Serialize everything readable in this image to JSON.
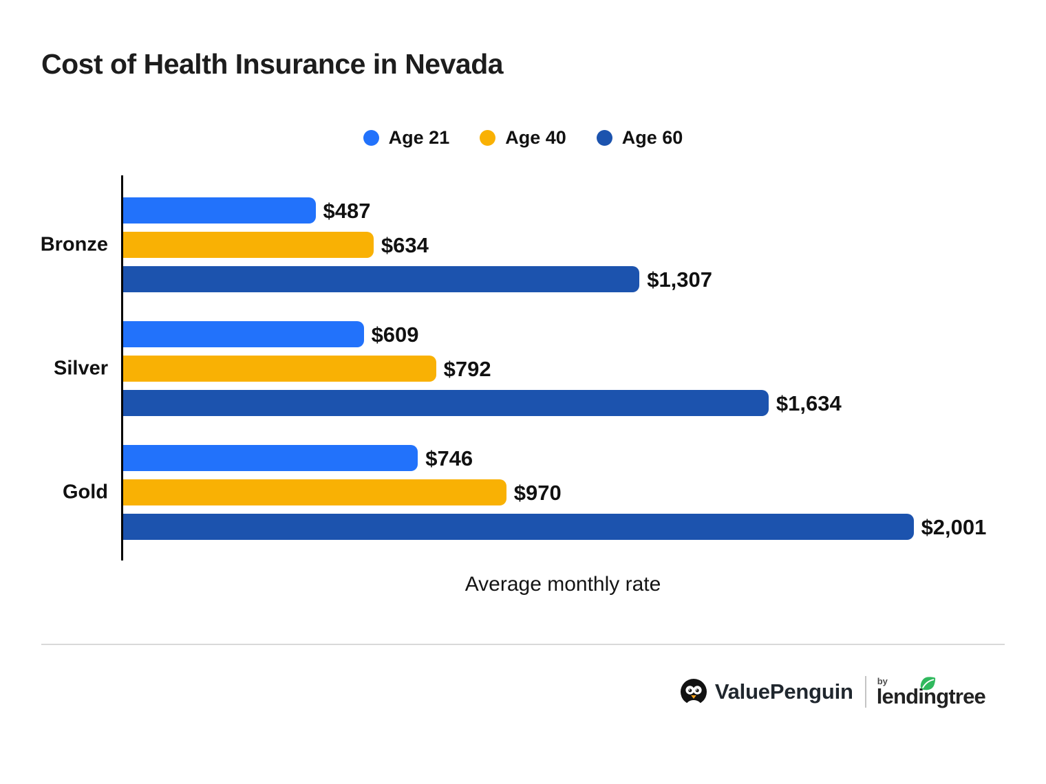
{
  "title": "Cost of Health Insurance in Nevada",
  "legend": [
    {
      "label": "Age 21",
      "color": "#2272fb"
    },
    {
      "label": "Age 40",
      "color": "#f9b104"
    },
    {
      "label": "Age 60",
      "color": "#1c53ae"
    }
  ],
  "chart_data": {
    "type": "bar",
    "orientation": "horizontal",
    "title": "Cost of Health Insurance in Nevada",
    "xlabel": "Average monthly rate",
    "categories": [
      "Bronze",
      "Silver",
      "Gold"
    ],
    "series": [
      {
        "name": "Age 21",
        "color": "#2272fb",
        "values": [
          487,
          609,
          746
        ],
        "labels": [
          "$487",
          "$609",
          "$746"
        ]
      },
      {
        "name": "Age 40",
        "color": "#f9b104",
        "values": [
          634,
          792,
          970
        ],
        "labels": [
          "$634",
          "$792",
          "$970"
        ]
      },
      {
        "name": "Age 60",
        "color": "#1c53ae",
        "values": [
          1307,
          1634,
          2001
        ],
        "labels": [
          "$1,307",
          "$1,634",
          "$2,001"
        ]
      }
    ],
    "xlim": [
      0,
      2240
    ],
    "grid": false,
    "legend_position": "top",
    "value_labels_shown": true
  },
  "x_axis_label": "Average monthly rate",
  "footer": {
    "brand": "ValuePenguin",
    "by_label": "by",
    "partner": "lendingtree",
    "penguin_icon_color": "#121212",
    "beak_color": "#f6a21d",
    "leaf_color": "#30b95e",
    "divider_color": "#d9d9d9"
  }
}
